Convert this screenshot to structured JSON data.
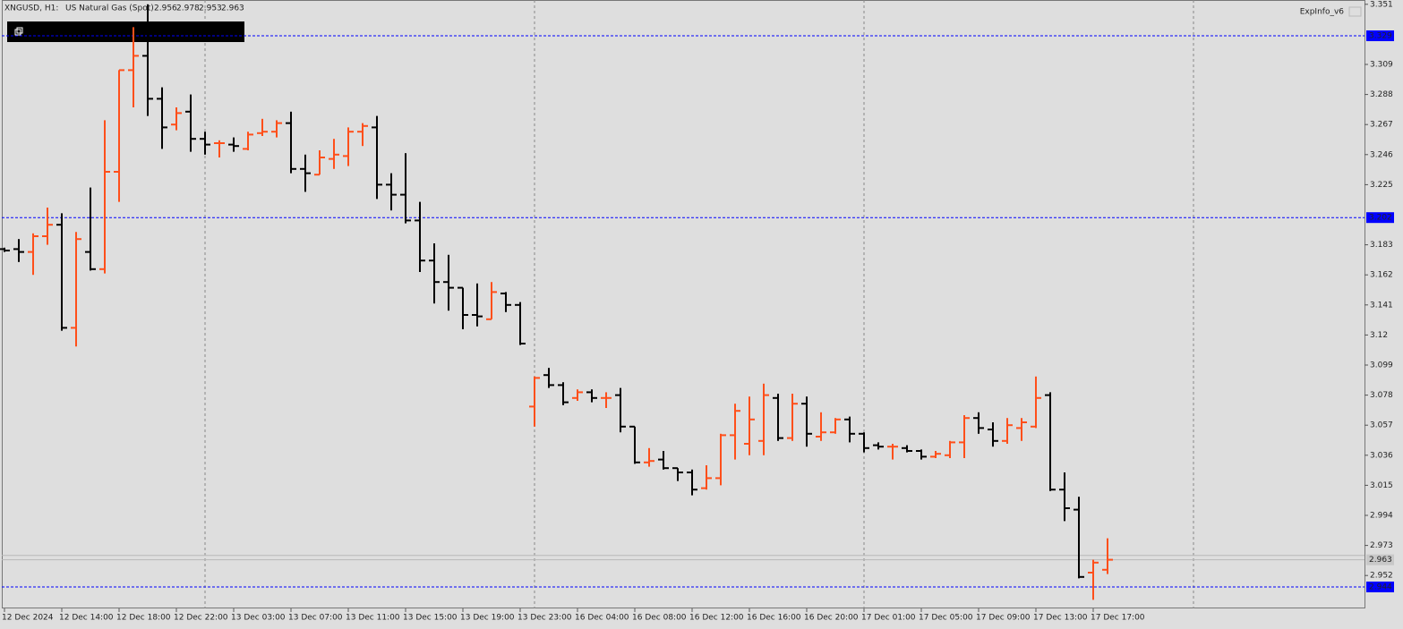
{
  "chart_data": {
    "type": "ohlc",
    "title": "XNGUSD, H1:",
    "subtitle": "US Natural Gas (Spot)",
    "indicator": "ExpInfo_v6",
    "categories": [
      "12 Dec 2024",
      null,
      null,
      null,
      "12 Dec 14:00",
      null,
      null,
      null,
      "12 Dec 18:00",
      null,
      null,
      null,
      "12 Dec 22:00",
      null,
      null,
      null,
      "13 Dec 03:00",
      null,
      null,
      null,
      "13 Dec 07:00",
      null,
      null,
      null,
      "13 Dec 11:00",
      null,
      null,
      null,
      "13 Dec 15:00",
      null,
      null,
      null,
      "13 Dec 19:00",
      null,
      null,
      null,
      "13 Dec 23:00",
      null,
      null,
      null,
      "16 Dec 04:00",
      null,
      null,
      null,
      "16 Dec 08:00",
      null,
      null,
      null,
      "16 Dec 12:00",
      null,
      null,
      null,
      "16 Dec 16:00",
      null,
      null,
      null,
      "16 Dec 20:00",
      null,
      null,
      null,
      "17 Dec 01:00",
      null,
      null,
      null,
      "17 Dec 05:00",
      null,
      null,
      null,
      "17 Dec 09:00",
      null,
      null,
      null,
      "17 Dec 13:00",
      null,
      null,
      null,
      "17 Dec 17:00",
      null
    ],
    "open": [
      3.18,
      3.18,
      3.178,
      3.189,
      3.197,
      3.125,
      3.178,
      3.166,
      3.234,
      3.305,
      3.315,
      3.285,
      3.267,
      3.276,
      3.257,
      3.254,
      3.253,
      3.25,
      3.261,
      3.262,
      3.268,
      3.236,
      3.232,
      3.243,
      3.245,
      3.262,
      3.265,
      3.225,
      3.218,
      3.2,
      3.172,
      3.157,
      3.153,
      3.134,
      3.131,
      3.149,
      3.141,
      3.07,
      3.092,
      3.085,
      3.076,
      3.08,
      3.076,
      3.078,
      3.056,
      3.031,
      3.033,
      3.027,
      3.024,
      3.013,
      3.02,
      3.05,
      3.044,
      3.046,
      3.076,
      3.048,
      3.072,
      3.049,
      3.052,
      3.061,
      3.051,
      3.043,
      3.042,
      3.041,
      3.039,
      3.035,
      3.036,
      3.045,
      3.062,
      3.054,
      3.046,
      3.055,
      3.056,
      3.078,
      3.012,
      2.998,
      2.954,
      2.956
    ],
    "high": [
      3.181,
      3.187,
      3.191,
      3.209,
      3.205,
      3.192,
      3.223,
      3.27,
      3.305,
      3.335,
      3.351,
      3.293,
      3.279,
      3.288,
      3.262,
      3.256,
      3.258,
      3.262,
      3.271,
      3.27,
      3.276,
      3.246,
      3.249,
      3.257,
      3.265,
      3.268,
      3.273,
      3.233,
      3.247,
      3.213,
      3.184,
      3.176,
      3.153,
      3.156,
      3.157,
      3.15,
      3.143,
      3.091,
      3.097,
      3.087,
      3.082,
      3.082,
      3.08,
      3.083,
      3.056,
      3.041,
      3.039,
      3.027,
      3.026,
      3.029,
      3.051,
      3.072,
      3.077,
      3.086,
      3.079,
      3.079,
      3.077,
      3.066,
      3.062,
      3.063,
      3.052,
      3.045,
      3.044,
      3.043,
      3.04,
      3.039,
      3.046,
      3.064,
      3.066,
      3.059,
      3.062,
      3.062,
      3.091,
      3.08,
      3.024,
      3.007,
      2.963,
      2.978
    ],
    "low": [
      3.178,
      3.171,
      3.162,
      3.183,
      3.123,
      3.112,
      3.165,
      3.163,
      3.213,
      3.279,
      3.273,
      3.25,
      3.263,
      3.248,
      3.246,
      3.244,
      3.248,
      3.249,
      3.259,
      3.258,
      3.233,
      3.22,
      3.232,
      3.236,
      3.238,
      3.252,
      3.215,
      3.207,
      3.198,
      3.164,
      3.142,
      3.137,
      3.124,
      3.126,
      3.131,
      3.136,
      3.113,
      3.056,
      3.083,
      3.071,
      3.074,
      3.073,
      3.069,
      3.052,
      3.03,
      3.028,
      3.026,
      3.018,
      3.008,
      3.012,
      3.015,
      3.033,
      3.036,
      3.036,
      3.046,
      3.046,
      3.042,
      3.046,
      3.051,
      3.045,
      3.038,
      3.04,
      3.033,
      3.038,
      3.033,
      3.034,
      3.034,
      3.034,
      3.051,
      3.042,
      3.044,
      3.046,
      3.055,
      3.011,
      2.99,
      2.95,
      2.935,
      2.953
    ],
    "close": [
      3.179,
      3.178,
      3.189,
      3.197,
      3.125,
      3.187,
      3.166,
      3.234,
      3.305,
      3.315,
      3.285,
      3.265,
      3.275,
      3.257,
      3.253,
      3.254,
      3.252,
      3.26,
      3.262,
      3.268,
      3.236,
      3.233,
      3.244,
      3.246,
      3.262,
      3.266,
      3.225,
      3.218,
      3.2,
      3.172,
      3.157,
      3.153,
      3.134,
      3.133,
      3.15,
      3.141,
      3.114,
      3.09,
      3.085,
      3.073,
      3.08,
      3.076,
      3.076,
      3.056,
      3.031,
      3.032,
      3.027,
      3.024,
      3.012,
      3.02,
      3.05,
      3.067,
      3.061,
      3.078,
      3.048,
      3.072,
      3.051,
      3.052,
      3.061,
      3.051,
      3.041,
      3.042,
      3.042,
      3.039,
      3.035,
      3.037,
      3.045,
      3.062,
      3.055,
      3.046,
      3.057,
      3.059,
      3.076,
      3.012,
      2.999,
      2.951,
      2.961,
      2.963
    ],
    "up_color": "#ff4f1a",
    "down_color": "#000000",
    "levels": [
      3.329,
      3.202,
      2.944
    ],
    "level_color": "#0000ff",
    "bid": 2.963,
    "ask": 2.966,
    "ylim": [
      2.929,
      3.354
    ],
    "yticks": [
      3.351,
      3.309,
      3.288,
      3.267,
      3.246,
      3.225,
      3.183,
      3.162,
      3.141,
      3.12,
      3.099,
      3.078,
      3.057,
      3.036,
      3.015,
      2.994,
      2.973,
      2.952
    ]
  }
}
